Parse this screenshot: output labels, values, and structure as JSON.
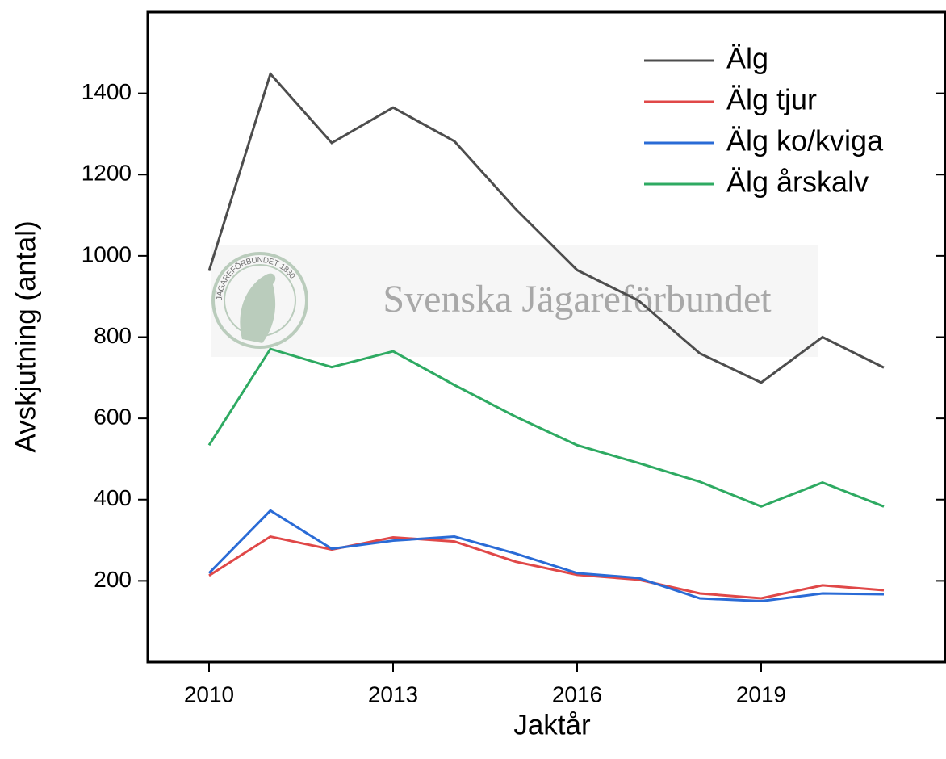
{
  "chart_data": {
    "type": "line",
    "xlabel": "Jaktår",
    "ylabel": "Avskjutning (antal)",
    "watermark": "Svenska Jägareförbundet",
    "emblem_text": "JÄGAREFÖRBUNDET 1830",
    "x": [
      2010,
      2011,
      2012,
      2013,
      2014,
      2015,
      2016,
      2017,
      2018,
      2019,
      2020,
      2021
    ],
    "series": [
      {
        "name": "Älg",
        "color": "#4d4d4d",
        "values": [
          963,
          1448,
          1278,
          1365,
          1282,
          1115,
          965,
          890,
          760,
          688,
          800,
          725
        ]
      },
      {
        "name": "Älg tjur",
        "color": "#e04848",
        "values": [
          213,
          309,
          277,
          307,
          297,
          247,
          215,
          203,
          169,
          157,
          189,
          177
        ]
      },
      {
        "name": "Älg ko/kviga",
        "color": "#2a6bd6",
        "values": [
          219,
          373,
          279,
          299,
          309,
          267,
          219,
          207,
          157,
          150,
          169,
          167
        ]
      },
      {
        "name": "Älg årskalv",
        "color": "#2eaa62",
        "values": [
          534,
          771,
          726,
          765,
          682,
          604,
          534,
          490,
          444,
          383,
          442,
          383
        ]
      }
    ],
    "xlim": [
      2009,
      2022
    ],
    "xticks": [
      2010,
      2013,
      2016,
      2019
    ],
    "ylim": [
      0,
      1600
    ],
    "yticks": [
      200,
      400,
      600,
      800,
      1000,
      1200,
      1400
    ],
    "legend": "upper right"
  }
}
